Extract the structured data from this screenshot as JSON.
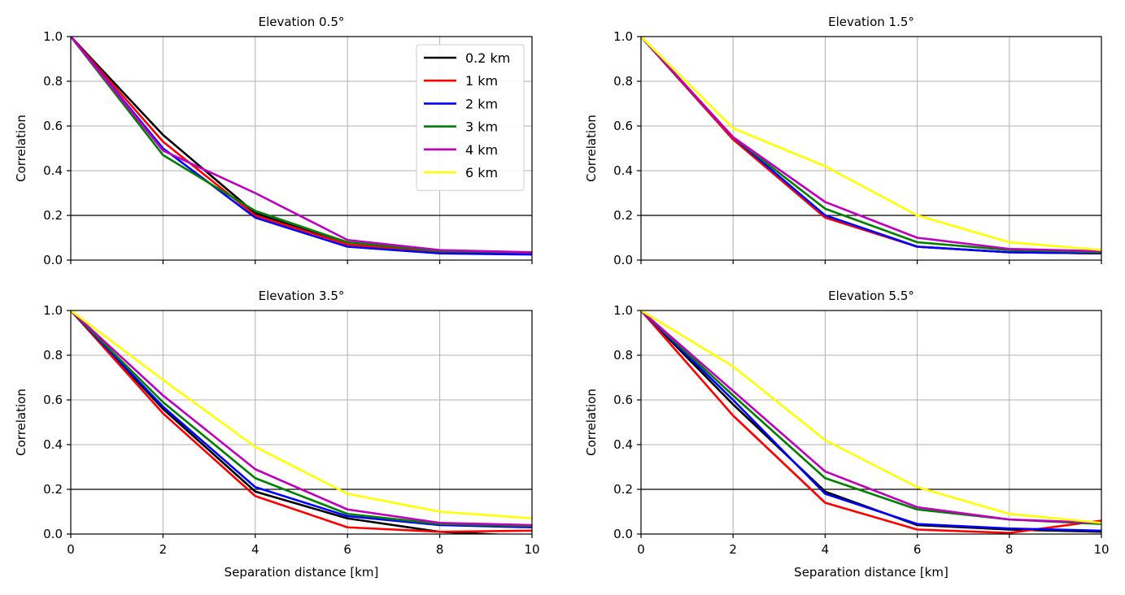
{
  "chart_data": [
    {
      "type": "line",
      "title": "Elevation 0.5°",
      "xlabel": "",
      "ylabel": "Correlation",
      "x": [
        0,
        2,
        4,
        6,
        8,
        10
      ],
      "xlim": [
        0,
        10
      ],
      "ylim": [
        0,
        1
      ],
      "xticks": [
        0,
        2,
        4,
        6,
        8,
        10
      ],
      "xtick_labels_visible": false,
      "yticks": [
        0.0,
        0.2,
        0.4,
        0.6,
        0.8,
        1.0
      ],
      "ytick_labels": [
        "0.0",
        "0.2",
        "0.4",
        "0.6",
        "0.8",
        "1.0"
      ],
      "grid": true,
      "threshold": 0.2,
      "legend": true,
      "legend_position": "top-right",
      "series": [
        {
          "name": "0.2 km",
          "color": "#000000",
          "values": [
            1.0,
            0.56,
            0.21,
            0.07,
            0.035,
            0.03
          ]
        },
        {
          "name": "1 km",
          "color": "#ff0000",
          "values": [
            1.0,
            0.53,
            0.2,
            0.07,
            0.035,
            0.03
          ]
        },
        {
          "name": "2 km",
          "color": "#0000ff",
          "values": [
            1.0,
            0.5,
            0.19,
            0.06,
            0.03,
            0.025
          ]
        },
        {
          "name": "3 km",
          "color": "#008000",
          "values": [
            1.0,
            0.47,
            0.22,
            0.08,
            0.04,
            0.035
          ]
        },
        {
          "name": "4 km",
          "color": "#bf00bf",
          "values": [
            1.0,
            0.49,
            0.3,
            0.09,
            0.045,
            0.035
          ]
        }
      ]
    },
    {
      "type": "line",
      "title": "Elevation 1.5°",
      "xlabel": "",
      "ylabel": "Correlation",
      "x": [
        0,
        2,
        4,
        6,
        8,
        10
      ],
      "xlim": [
        0,
        10
      ],
      "ylim": [
        0,
        1
      ],
      "xticks": [
        0,
        2,
        4,
        6,
        8,
        10
      ],
      "xtick_labels_visible": false,
      "yticks": [
        0.0,
        0.2,
        0.4,
        0.6,
        0.8,
        1.0
      ],
      "ytick_labels": [
        "0.0",
        "0.2",
        "0.4",
        "0.6",
        "0.8",
        "1.0"
      ],
      "grid": true,
      "threshold": 0.2,
      "legend": false,
      "series": [
        {
          "name": "0.2 km",
          "color": "#000000",
          "values": [
            1.0,
            0.54,
            0.2,
            0.06,
            0.035,
            0.03
          ]
        },
        {
          "name": "1 km",
          "color": "#ff0000",
          "values": [
            1.0,
            0.54,
            0.19,
            0.06,
            0.035,
            0.03
          ]
        },
        {
          "name": "2 km",
          "color": "#0000ff",
          "values": [
            1.0,
            0.55,
            0.2,
            0.06,
            0.035,
            0.03
          ]
        },
        {
          "name": "3 km",
          "color": "#008000",
          "values": [
            1.0,
            0.55,
            0.23,
            0.08,
            0.045,
            0.035
          ]
        },
        {
          "name": "4 km",
          "color": "#bf00bf",
          "values": [
            1.0,
            0.55,
            0.26,
            0.1,
            0.05,
            0.04
          ]
        },
        {
          "name": "6 km",
          "color": "#ffff00",
          "values": [
            1.0,
            0.59,
            0.42,
            0.2,
            0.08,
            0.045
          ]
        }
      ]
    },
    {
      "type": "line",
      "title": "Elevation 3.5°",
      "xlabel": "Separation distance [km]",
      "ylabel": "Correlation",
      "x": [
        0,
        2,
        4,
        6,
        8,
        10
      ],
      "xlim": [
        0,
        10
      ],
      "ylim": [
        0,
        1
      ],
      "xticks": [
        0,
        2,
        4,
        6,
        8,
        10
      ],
      "xtick_labels": [
        "0",
        "2",
        "4",
        "6",
        "8",
        "10"
      ],
      "xtick_labels_visible": true,
      "yticks": [
        0.0,
        0.2,
        0.4,
        0.6,
        0.8,
        1.0
      ],
      "ytick_labels": [
        "0.0",
        "0.2",
        "0.4",
        "0.6",
        "0.8",
        "1.0"
      ],
      "grid": true,
      "threshold": 0.2,
      "legend": false,
      "series": [
        {
          "name": "0.2 km",
          "color": "#000000",
          "values": [
            1.0,
            0.56,
            0.19,
            0.07,
            0.01,
            -0.01
          ]
        },
        {
          "name": "1 km",
          "color": "#ff0000",
          "values": [
            1.0,
            0.54,
            0.17,
            0.03,
            0.01,
            0.015
          ]
        },
        {
          "name": "2 km",
          "color": "#0000ff",
          "values": [
            1.0,
            0.57,
            0.21,
            0.08,
            0.04,
            0.03
          ]
        },
        {
          "name": "3 km",
          "color": "#008000",
          "values": [
            1.0,
            0.59,
            0.25,
            0.09,
            0.045,
            0.035
          ]
        },
        {
          "name": "4 km",
          "color": "#bf00bf",
          "values": [
            1.0,
            0.62,
            0.29,
            0.11,
            0.05,
            0.04
          ]
        },
        {
          "name": "6 km",
          "color": "#ffff00",
          "values": [
            1.0,
            0.69,
            0.39,
            0.18,
            0.1,
            0.07
          ]
        }
      ]
    },
    {
      "type": "line",
      "title": "Elevation 5.5°",
      "xlabel": "Separation distance [km]",
      "ylabel": "Correlation",
      "x": [
        0,
        2,
        4,
        6,
        8,
        10
      ],
      "xlim": [
        0,
        10
      ],
      "ylim": [
        0,
        1
      ],
      "xticks": [
        0,
        2,
        4,
        6,
        8,
        10
      ],
      "xtick_labels": [
        "0",
        "2",
        "4",
        "6",
        "8",
        "10"
      ],
      "xtick_labels_visible": true,
      "yticks": [
        0.0,
        0.2,
        0.4,
        0.6,
        0.8,
        1.0
      ],
      "ytick_labels": [
        "0.0",
        "0.2",
        "0.4",
        "0.6",
        "0.8",
        "1.0"
      ],
      "grid": true,
      "threshold": 0.2,
      "legend": false,
      "series": [
        {
          "name": "0.2 km",
          "color": "#000000",
          "values": [
            1.0,
            0.58,
            0.19,
            0.04,
            0.02,
            0.01
          ]
        },
        {
          "name": "1 km",
          "color": "#ff0000",
          "values": [
            1.0,
            0.53,
            0.14,
            0.02,
            0.005,
            0.06
          ]
        },
        {
          "name": "2 km",
          "color": "#0000ff",
          "values": [
            1.0,
            0.6,
            0.18,
            0.045,
            0.025,
            0.015
          ]
        },
        {
          "name": "3 km",
          "color": "#008000",
          "values": [
            1.0,
            0.62,
            0.25,
            0.11,
            0.065,
            0.045
          ]
        },
        {
          "name": "4 km",
          "color": "#bf00bf",
          "values": [
            1.0,
            0.64,
            0.28,
            0.12,
            0.065,
            0.05
          ]
        },
        {
          "name": "6 km",
          "color": "#ffff00",
          "values": [
            1.0,
            0.75,
            0.42,
            0.21,
            0.09,
            0.05
          ]
        }
      ]
    }
  ]
}
